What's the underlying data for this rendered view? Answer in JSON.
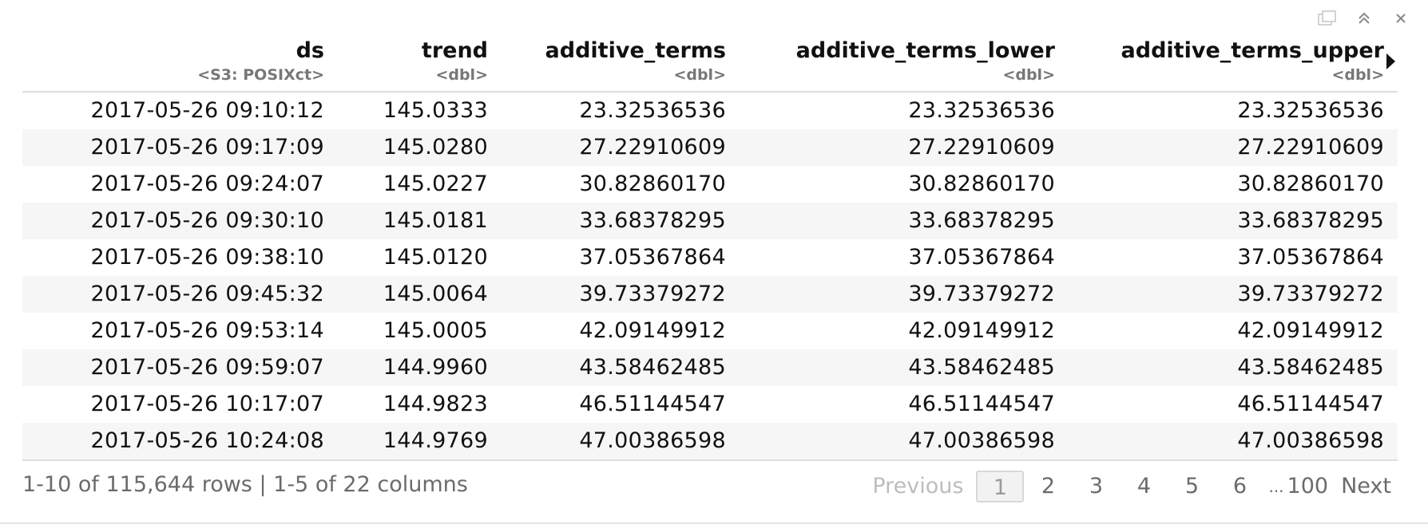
{
  "toolbar": {
    "icons": [
      "popout-icon",
      "collapse-up-icon",
      "close-icon"
    ]
  },
  "columns": [
    {
      "name": "ds",
      "type": "<S3: POSIXct>"
    },
    {
      "name": "trend",
      "type": "<dbl>"
    },
    {
      "name": "additive_terms",
      "type": "<dbl>"
    },
    {
      "name": "additive_terms_lower",
      "type": "<dbl>"
    },
    {
      "name": "additive_terms_upper",
      "type": "<dbl>"
    }
  ],
  "rows": [
    [
      "2017-05-26 09:10:12",
      "145.0333",
      "23.32536536",
      "23.32536536",
      "23.32536536"
    ],
    [
      "2017-05-26 09:17:09",
      "145.0280",
      "27.22910609",
      "27.22910609",
      "27.22910609"
    ],
    [
      "2017-05-26 09:24:07",
      "145.0227",
      "30.82860170",
      "30.82860170",
      "30.82860170"
    ],
    [
      "2017-05-26 09:30:10",
      "145.0181",
      "33.68378295",
      "33.68378295",
      "33.68378295"
    ],
    [
      "2017-05-26 09:38:10",
      "145.0120",
      "37.05367864",
      "37.05367864",
      "37.05367864"
    ],
    [
      "2017-05-26 09:45:32",
      "145.0064",
      "39.73379272",
      "39.73379272",
      "39.73379272"
    ],
    [
      "2017-05-26 09:53:14",
      "145.0005",
      "42.09149912",
      "42.09149912",
      "42.09149912"
    ],
    [
      "2017-05-26 09:59:07",
      "144.9960",
      "43.58462485",
      "43.58462485",
      "43.58462485"
    ],
    [
      "2017-05-26 10:17:07",
      "144.9823",
      "46.51144547",
      "46.51144547",
      "46.51144547"
    ],
    [
      "2017-05-26 10:24:08",
      "144.9769",
      "47.00386598",
      "47.00386598",
      "47.00386598"
    ]
  ],
  "footer": {
    "info": "1-10 of 115,644 rows | 1-5 of 22 columns"
  },
  "pagination": {
    "previous": "Previous",
    "pages": [
      "1",
      "2",
      "3",
      "4",
      "5",
      "6"
    ],
    "current": "1",
    "ellipsis": "...",
    "last": "100",
    "next": "Next"
  }
}
